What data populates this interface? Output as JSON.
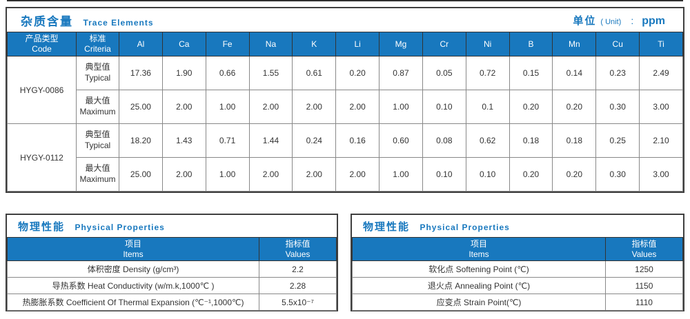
{
  "colors": {
    "accent_blue": "#1878be",
    "header_bg": "#1878be",
    "panel_border": "#3f3f3f",
    "grid_line": "#888888"
  },
  "trace_elements": {
    "title_zh": "杂质含量",
    "title_en": "Trace Elements",
    "unit_zh": "单位",
    "unit_en": "( Unit)",
    "unit_colon": ":",
    "unit_value": "ppm",
    "col_product_zh": "产品类型",
    "col_product_en": "Code",
    "col_criteria_zh": "标准",
    "col_criteria_en": "Criteria",
    "elements": [
      "Al",
      "Ca",
      "Fe",
      "Na",
      "K",
      "Li",
      "Mg",
      "Cr",
      "Ni",
      "B",
      "Mn",
      "Cu",
      "Ti"
    ],
    "products": [
      {
        "code": "HYGY-0086",
        "rows": [
          {
            "type_zh": "典型值",
            "type_en": "Typical",
            "values": [
              "17.36",
              "1.90",
              "0.66",
              "1.55",
              "0.61",
              "0.20",
              "0.87",
              "0.05",
              "0.72",
              "0.15",
              "0.14",
              "0.23",
              "2.49"
            ]
          },
          {
            "type_zh": "最大值",
            "type_en": "Maximum",
            "values": [
              "25.00",
              "2.00",
              "1.00",
              "2.00",
              "2.00",
              "2.00",
              "1.00",
              "0.10",
              "0.1",
              "0.20",
              "0.20",
              "0.30",
              "3.00"
            ]
          }
        ]
      },
      {
        "code": "HYGY-0112",
        "rows": [
          {
            "type_zh": "典型值",
            "type_en": "Typical",
            "values": [
              "18.20",
              "1.43",
              "0.71",
              "1.44",
              "0.24",
              "0.16",
              "0.60",
              "0.08",
              "0.62",
              "0.18",
              "0.18",
              "0.25",
              "2.10"
            ]
          },
          {
            "type_zh": "最大值",
            "type_en": "Maximum",
            "values": [
              "25.00",
              "2.00",
              "1.00",
              "2.00",
              "2.00",
              "2.00",
              "1.00",
              "0.10",
              "0.10",
              "0.20",
              "0.20",
              "0.30",
              "3.00"
            ]
          }
        ]
      }
    ]
  },
  "physical_left": {
    "title_zh": "物理性能",
    "title_en": "Physical Properties",
    "col_items_zh": "项目",
    "col_items_en": "Items",
    "col_values_zh": "指标值",
    "col_values_en": "Values",
    "rows": [
      {
        "item": "体积密度 Density (g/cm³)",
        "value": "2.2"
      },
      {
        "item": "导热系数 Heat Conductivity (w/m.k,1000℃ )",
        "value": "2.28"
      },
      {
        "item": "热膨胀系数 Coefficient Of Thermal Expansion (℃⁻¹,1000℃)",
        "value": "5.5x10⁻⁷"
      }
    ]
  },
  "physical_right": {
    "title_zh": "物理性能",
    "title_en": "Physical Properties",
    "col_items_zh": "项目",
    "col_items_en": "Items",
    "col_values_zh": "指标值",
    "col_values_en": "Values",
    "rows": [
      {
        "item": "软化点 Softening Point (℃)",
        "value": "1250"
      },
      {
        "item": "退火点 Annealing Point (℃)",
        "value": "1150"
      },
      {
        "item": "应变点 Strain Point(℃)",
        "value": "1110"
      }
    ]
  }
}
